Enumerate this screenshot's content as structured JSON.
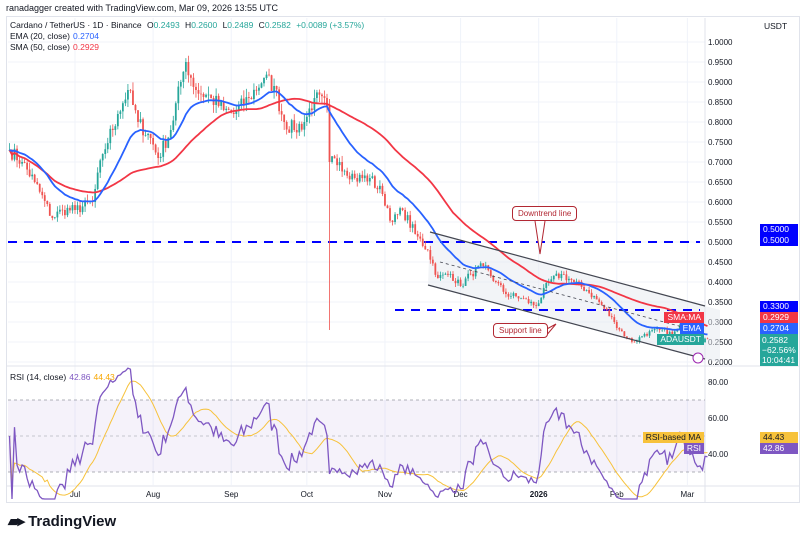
{
  "credit": "ranadagger created with TradingView.com, Mar 09, 2026 13:55 UTC",
  "legend": {
    "symbol": "Cardano / TetherUS · 1D · Binance",
    "o_label": "O",
    "o": "0.2493",
    "h_label": "H",
    "h": "0.2600",
    "l_label": "L",
    "l": "0.2489",
    "c_label": "C",
    "c": "0.2582",
    "change": "+0.0089 (+3.57%)",
    "ema_label": "EMA (20, close)",
    "ema": "0.2704",
    "sma_label": "SMA (50, close)",
    "sma": "0.2929",
    "rsi_label": "RSI (14, close)",
    "rsi": "42.86",
    "rsi_ma": "44.43"
  },
  "currency": "USDT",
  "tags": {
    "level_50": "0.5000",
    "level_50b": "0.5000",
    "level_33": "0.3300",
    "sma_name": "SMA:MA",
    "sma": "0.2929",
    "ema_name": "EMA",
    "ema": "0.2704",
    "sym": "ADAUSDT",
    "price": "0.2582",
    "pct": "−62.56%",
    "countdown": "10:04:41",
    "rsi_ma_name": "RSI-based MA",
    "rsi_ma": "44.43",
    "rsi_name": "RSI",
    "rsi": "42.86"
  },
  "annotations": {
    "downtrend": "Downtrend line",
    "support": "Support line"
  },
  "logo": "TradingView",
  "colors": {
    "up": "#26a69a",
    "down": "#ef5350",
    "ema": "#2962ff",
    "sma": "#f23645",
    "level": "#0000ff",
    "rsi": "#7e57c2",
    "rsi_ma": "#f7c23b",
    "annotation": "#b22833"
  },
  "chart_data": {
    "type": "candlestick",
    "title": "Cardano / TetherUS · 1D · Binance",
    "price_ticks": [
      "1.0000",
      "0.9500",
      "0.9000",
      "0.8500",
      "0.8000",
      "0.7500",
      "0.7000",
      "0.6500",
      "0.6000",
      "0.5500",
      "0.5000",
      "0.4500",
      "0.4000",
      "0.3500",
      "0.3000",
      "0.2500",
      "0.2000"
    ],
    "ylim": [
      0.2,
      1.0
    ],
    "x_ticks": [
      "Jul",
      "Aug",
      "Sep",
      "Oct",
      "Nov",
      "Dec",
      "2026",
      "Feb",
      "Mar"
    ],
    "rsi_ticks": [
      "80.00",
      "60.00",
      "40.00"
    ],
    "rsi_bands": [
      70,
      30
    ],
    "horizontal_levels": [
      0.5,
      0.33
    ],
    "close_keypoints": [
      [
        "2025-06-05",
        0.73
      ],
      [
        "2025-06-10",
        0.7
      ],
      [
        "2025-06-15",
        0.65
      ],
      [
        "2025-06-22",
        0.56
      ],
      [
        "2025-06-26",
        0.58
      ],
      [
        "2025-07-01",
        0.58
      ],
      [
        "2025-07-08",
        0.6
      ],
      [
        "2025-07-12",
        0.72
      ],
      [
        "2025-07-18",
        0.82
      ],
      [
        "2025-07-22",
        0.88
      ],
      [
        "2025-07-26",
        0.8
      ],
      [
        "2025-07-31",
        0.76
      ],
      [
        "2025-08-03",
        0.71
      ],
      [
        "2025-08-08",
        0.78
      ],
      [
        "2025-08-12",
        0.9
      ],
      [
        "2025-08-14",
        0.95
      ],
      [
        "2025-08-18",
        0.88
      ],
      [
        "2025-08-24",
        0.86
      ],
      [
        "2025-08-29",
        0.83
      ],
      [
        "2025-09-02",
        0.82
      ],
      [
        "2025-09-08",
        0.86
      ],
      [
        "2025-09-14",
        0.91
      ],
      [
        "2025-09-18",
        0.89
      ],
      [
        "2025-09-22",
        0.8
      ],
      [
        "2025-09-26",
        0.78
      ],
      [
        "2025-09-30",
        0.8
      ],
      [
        "2025-10-04",
        0.86
      ],
      [
        "2025-10-09",
        0.84
      ],
      [
        "2025-10-10",
        0.7
      ],
      [
        "2025-10-14",
        0.7
      ],
      [
        "2025-10-20",
        0.66
      ],
      [
        "2025-10-26",
        0.66
      ],
      [
        "2025-10-31",
        0.62
      ],
      [
        "2025-11-04",
        0.55
      ],
      [
        "2025-11-08",
        0.58
      ],
      [
        "2025-11-13",
        0.52
      ],
      [
        "2025-11-18",
        0.48
      ],
      [
        "2025-11-22",
        0.41
      ],
      [
        "2025-11-27",
        0.42
      ],
      [
        "2025-12-01",
        0.39
      ],
      [
        "2025-12-05",
        0.42
      ],
      [
        "2025-12-10",
        0.44
      ],
      [
        "2025-12-15",
        0.4
      ],
      [
        "2025-12-19",
        0.37
      ],
      [
        "2025-12-25",
        0.36
      ],
      [
        "2025-12-31",
        0.34
      ],
      [
        "2026-01-05",
        0.4
      ],
      [
        "2026-01-10",
        0.42
      ],
      [
        "2026-01-15",
        0.4
      ],
      [
        "2026-01-20",
        0.38
      ],
      [
        "2026-01-25",
        0.35
      ],
      [
        "2026-01-31",
        0.3
      ],
      [
        "2026-02-05",
        0.26
      ],
      [
        "2026-02-08",
        0.25
      ],
      [
        "2026-02-12",
        0.27
      ],
      [
        "2026-02-18",
        0.28
      ],
      [
        "2026-02-23",
        0.27
      ],
      [
        "2026-02-27",
        0.29
      ],
      [
        "2026-03-03",
        0.27
      ],
      [
        "2026-03-06",
        0.255
      ],
      [
        "2026-03-09",
        0.2582
      ]
    ],
    "notable_wick_low": [
      "2025-10-10",
      0.28
    ],
    "series": [
      {
        "name": "EMA (20, close)",
        "last": 0.2704
      },
      {
        "name": "SMA (50, close)",
        "last": 0.2929
      },
      {
        "name": "RSI (14, close)",
        "last": 42.86
      },
      {
        "name": "RSI-based MA",
        "last": 44.43
      }
    ]
  }
}
